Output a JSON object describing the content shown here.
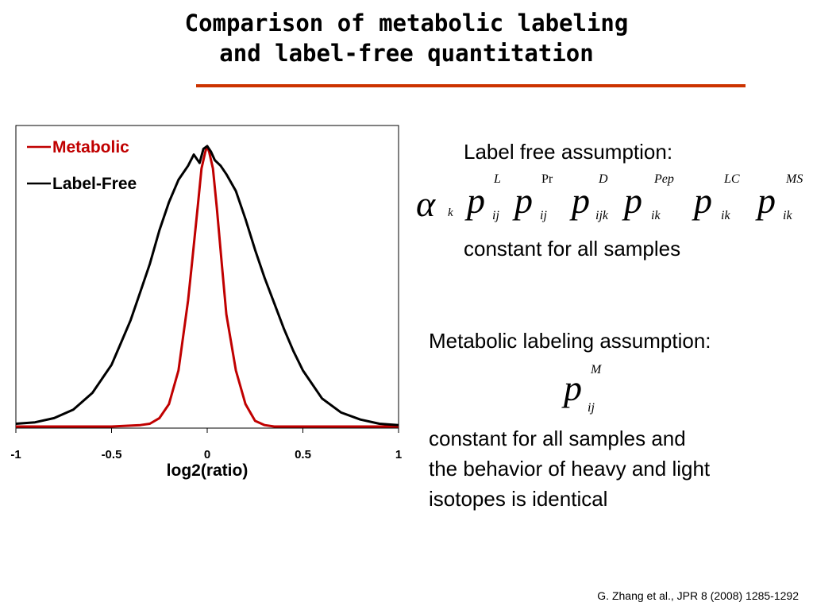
{
  "slide": {
    "title_line1": "Comparison of metabolic labeling",
    "title_line2": "and label-free quantitation",
    "rule_color": "#cc3300"
  },
  "label_free": {
    "heading": "Label free assumption:",
    "formula": {
      "alpha": "α",
      "alpha_sub": "k",
      "terms": [
        {
          "base": "p",
          "sup": "L",
          "sub": "ij"
        },
        {
          "base": "p",
          "sup": "Pr",
          "sub": "ij"
        },
        {
          "base": "p",
          "sup": "D",
          "sub": "ijk"
        },
        {
          "base": "p",
          "sup": "Pep",
          "sub": "ik"
        },
        {
          "base": "p",
          "sup": "LC",
          "sub": "ik"
        },
        {
          "base": "p",
          "sup": "MS",
          "sub": "ik"
        }
      ]
    },
    "footer": "constant for all samples"
  },
  "metabolic": {
    "heading": "Metabolic labeling assumption:",
    "formula": {
      "base": "p",
      "sup": "M",
      "sub": "ij"
    },
    "body_lines": [
      "constant for all samples and",
      "the behavior of heavy and light",
      "isotopes is identical"
    ]
  },
  "citation": "G. Zhang et al., JPR 8 (2008) 1285-1292",
  "chart_data": {
    "type": "line",
    "title": "",
    "xlabel": "log2(ratio)",
    "ylabel": "",
    "xlim": [
      -1,
      1
    ],
    "ylim": [
      0,
      1
    ],
    "xticks": [
      "-1",
      "-0.5",
      "0",
      "0.5",
      "1"
    ],
    "xtick_values": [
      -1,
      -0.5,
      0,
      0.5,
      1
    ],
    "grid": false,
    "legend_position": "top-left",
    "series": [
      {
        "name": "Metabolic",
        "color": "#c00000",
        "x": [
          -1,
          -0.5,
          -0.35,
          -0.3,
          -0.25,
          -0.2,
          -0.15,
          -0.1,
          -0.08,
          -0.05,
          -0.03,
          -0.01,
          0.0,
          0.01,
          0.03,
          0.05,
          0.08,
          0.1,
          0.15,
          0.2,
          0.25,
          0.3,
          0.35,
          0.5,
          1
        ],
        "y": [
          0.0,
          0.0,
          0.005,
          0.01,
          0.03,
          0.08,
          0.2,
          0.45,
          0.58,
          0.78,
          0.92,
          0.98,
          1.0,
          0.98,
          0.92,
          0.78,
          0.55,
          0.4,
          0.2,
          0.08,
          0.02,
          0.005,
          0.0,
          0.0,
          0.0
        ]
      },
      {
        "name": "Label-Free",
        "color": "#000000",
        "x": [
          -1,
          -0.9,
          -0.8,
          -0.7,
          -0.6,
          -0.5,
          -0.45,
          -0.4,
          -0.35,
          -0.3,
          -0.25,
          -0.2,
          -0.15,
          -0.1,
          -0.07,
          -0.04,
          -0.02,
          0.0,
          0.02,
          0.04,
          0.07,
          0.1,
          0.15,
          0.2,
          0.25,
          0.3,
          0.35,
          0.4,
          0.45,
          0.5,
          0.6,
          0.7,
          0.8,
          0.9,
          1
        ],
        "y": [
          0.01,
          0.015,
          0.03,
          0.06,
          0.12,
          0.22,
          0.3,
          0.38,
          0.48,
          0.58,
          0.7,
          0.8,
          0.88,
          0.93,
          0.97,
          0.94,
          0.99,
          1.0,
          0.98,
          0.95,
          0.93,
          0.9,
          0.84,
          0.74,
          0.63,
          0.53,
          0.44,
          0.35,
          0.27,
          0.2,
          0.1,
          0.05,
          0.025,
          0.01,
          0.005
        ]
      }
    ]
  }
}
